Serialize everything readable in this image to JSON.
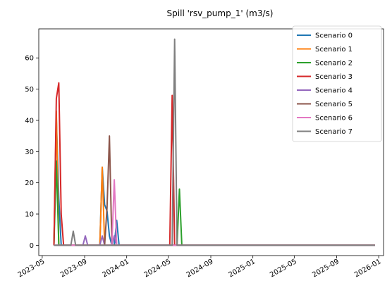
{
  "chart_data": {
    "type": "line",
    "title": "Spill 'rsv_pump_1' (m3/s)",
    "xlabel": "",
    "ylabel": "",
    "x_axis_type": "date",
    "xlim": [
      "2023-04-21",
      "2026-01-15"
    ],
    "ylim": [
      -3.3,
      69.3
    ],
    "x_ticks": [
      "2023-05",
      "2023-09",
      "2024-01",
      "2024-05",
      "2024-09",
      "2025-01",
      "2025-05",
      "2025-09",
      "2026-01"
    ],
    "x_tick_dates": [
      "2023-05-01",
      "2023-09-01",
      "2024-01-01",
      "2024-05-01",
      "2024-09-01",
      "2025-01-01",
      "2025-05-01",
      "2025-09-01",
      "2026-01-01"
    ],
    "y_ticks": [
      0,
      10,
      20,
      30,
      40,
      50,
      60
    ],
    "grid": false,
    "legend_position": "top-right",
    "series": [
      {
        "name": "Scenario 0",
        "color": "#1f77b4",
        "points": [
          [
            "2023-06-04",
            0
          ],
          [
            "2023-06-11",
            41
          ],
          [
            "2023-06-18",
            15
          ],
          [
            "2023-06-25",
            0
          ],
          [
            "2023-10-15",
            0
          ],
          [
            "2023-10-22",
            25
          ],
          [
            "2023-10-29",
            13
          ],
          [
            "2023-11-05",
            11
          ],
          [
            "2023-11-12",
            3
          ],
          [
            "2023-11-19",
            0
          ],
          [
            "2023-11-26",
            0
          ],
          [
            "2023-12-03",
            8
          ],
          [
            "2023-12-10",
            0
          ],
          [
            "2025-12-21",
            0
          ]
        ]
      },
      {
        "name": "Scenario 1",
        "color": "#ff7f0e",
        "points": [
          [
            "2023-06-04",
            0
          ],
          [
            "2023-06-11",
            43
          ],
          [
            "2023-06-18",
            0
          ],
          [
            "2023-10-15",
            0
          ],
          [
            "2023-10-22",
            25
          ],
          [
            "2023-10-29",
            0
          ],
          [
            "2025-12-21",
            0
          ]
        ]
      },
      {
        "name": "Scenario 2",
        "color": "#2ca02c",
        "points": [
          [
            "2023-06-04",
            0
          ],
          [
            "2023-06-11",
            27
          ],
          [
            "2023-06-18",
            0
          ],
          [
            "2024-05-26",
            0
          ],
          [
            "2024-06-02",
            18
          ],
          [
            "2024-06-09",
            0
          ],
          [
            "2025-12-21",
            0
          ]
        ]
      },
      {
        "name": "Scenario 3",
        "color": "#d62728",
        "points": [
          [
            "2023-06-04",
            0
          ],
          [
            "2023-06-11",
            47
          ],
          [
            "2023-06-18",
            52
          ],
          [
            "2023-06-25",
            10
          ],
          [
            "2023-07-02",
            0
          ],
          [
            "2024-05-05",
            0
          ],
          [
            "2024-05-12",
            48
          ],
          [
            "2024-05-19",
            0
          ],
          [
            "2025-12-21",
            0
          ]
        ]
      },
      {
        "name": "Scenario 4",
        "color": "#9467bd",
        "points": [
          [
            "2023-06-04",
            0
          ],
          [
            "2023-08-27",
            0
          ],
          [
            "2023-09-03",
            3
          ],
          [
            "2023-09-10",
            0
          ],
          [
            "2023-10-15",
            0
          ],
          [
            "2023-10-22",
            3
          ],
          [
            "2023-10-29",
            0
          ],
          [
            "2023-11-19",
            0
          ],
          [
            "2023-11-26",
            3
          ],
          [
            "2023-12-03",
            0
          ],
          [
            "2025-12-21",
            0
          ]
        ]
      },
      {
        "name": "Scenario 5",
        "color": "#8c564b",
        "points": [
          [
            "2023-06-04",
            0
          ],
          [
            "2023-10-29",
            0
          ],
          [
            "2023-11-05",
            12
          ],
          [
            "2023-11-12",
            35
          ],
          [
            "2023-11-19",
            0
          ],
          [
            "2025-12-21",
            0
          ]
        ]
      },
      {
        "name": "Scenario 6",
        "color": "#e377c2",
        "points": [
          [
            "2023-06-04",
            0
          ],
          [
            "2023-11-19",
            0
          ],
          [
            "2023-11-26",
            21
          ],
          [
            "2023-12-03",
            0
          ],
          [
            "2025-12-21",
            0
          ]
        ]
      },
      {
        "name": "Scenario 7",
        "color": "#7f7f7f",
        "points": [
          [
            "2023-06-04",
            0
          ],
          [
            "2023-07-23",
            0
          ],
          [
            "2023-07-30",
            4.5
          ],
          [
            "2023-08-06",
            0
          ],
          [
            "2024-05-12",
            0
          ],
          [
            "2024-05-19",
            66
          ],
          [
            "2024-05-26",
            0
          ],
          [
            "2025-12-21",
            0
          ]
        ]
      }
    ]
  }
}
